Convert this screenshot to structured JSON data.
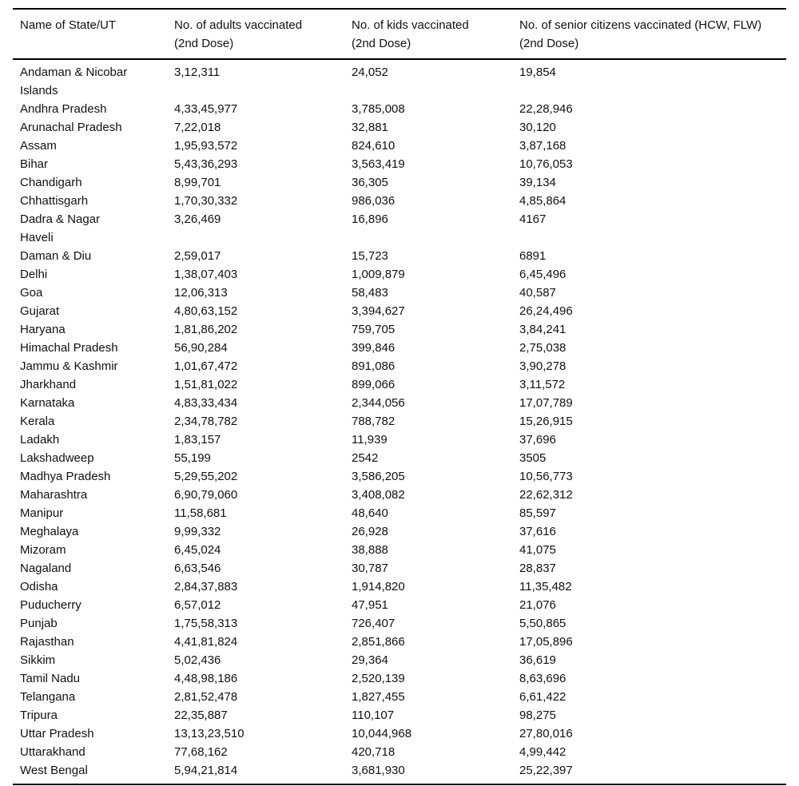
{
  "page": {
    "background": "#ffffff",
    "text_color": "#111111",
    "rule_color": "#000000"
  },
  "table": {
    "columns": [
      "Name of State/UT",
      "No. of adults vaccinated\n(2nd Dose)",
      "No. of kids vaccinated\n(2nd Dose)",
      "No. of senior citizens vaccinated (HCW, FLW)\n(2nd Dose)"
    ],
    "rows": [
      [
        "Andaman & Nicobar Islands",
        "3,12,311",
        "24,052",
        "19,854"
      ],
      [
        "Andhra Pradesh",
        "4,33,45,977",
        "3,785,008",
        "22,28,946"
      ],
      [
        "Arunachal Pradesh",
        "7,22,018",
        "32,881",
        "30,120"
      ],
      [
        "Assam",
        "1,95,93,572",
        "824,610",
        "3,87,168"
      ],
      [
        "Bihar",
        "5,43,36,293",
        "3,563,419",
        "10,76,053"
      ],
      [
        "Chandigarh",
        "8,99,701",
        "36,305",
        "39,134"
      ],
      [
        "Chhattisgarh",
        "1,70,30,332",
        "986,036",
        "4,85,864"
      ],
      [
        "Dadra & Nagar Haveli",
        "3,26,469",
        "16,896",
        "4167"
      ],
      [
        "Daman & Diu",
        "2,59,017",
        "15,723",
        "6891"
      ],
      [
        "Delhi",
        "1,38,07,403",
        "1,009,879",
        "6,45,496"
      ],
      [
        "Goa",
        "12,06,313",
        "58,483",
        "40,587"
      ],
      [
        "Gujarat",
        "4,80,63,152",
        "3,394,627",
        "26,24,496"
      ],
      [
        "Haryana",
        "1,81,86,202",
        "759,705",
        "3,84,241"
      ],
      [
        "Himachal Pradesh",
        "56,90,284",
        "399,846",
        "2,75,038"
      ],
      [
        "Jammu & Kashmir",
        "1,01,67,472",
        "891,086",
        "3,90,278"
      ],
      [
        "Jharkhand",
        "1,51,81,022",
        "899,066",
        "3,11,572"
      ],
      [
        "Karnataka",
        "4,83,33,434",
        "2,344,056",
        "17,07,789"
      ],
      [
        "Kerala",
        "2,34,78,782",
        "788,782",
        "15,26,915"
      ],
      [
        "Ladakh",
        "1,83,157",
        "11,939",
        "37,696"
      ],
      [
        "Lakshadweep",
        "55,199",
        "2542",
        "3505"
      ],
      [
        "Madhya Pradesh",
        "5,29,55,202",
        "3,586,205",
        "10,56,773"
      ],
      [
        "Maharashtra",
        "6,90,79,060",
        "3,408,082",
        "22,62,312"
      ],
      [
        "Manipur",
        "11,58,681",
        "48,640",
        "85,597"
      ],
      [
        "Meghalaya",
        "9,99,332",
        "26,928",
        "37,616"
      ],
      [
        "Mizoram",
        "6,45,024",
        "38,888",
        "41,075"
      ],
      [
        "Nagaland",
        "6,63,546",
        "30,787",
        "28,837"
      ],
      [
        "Odisha",
        "2,84,37,883",
        "1,914,820",
        "11,35,482"
      ],
      [
        "Puducherry",
        "6,57,012",
        "47,951",
        "21,076"
      ],
      [
        "Punjab",
        "1,75,58,313",
        "726,407",
        "5,50,865"
      ],
      [
        "Rajasthan",
        "4,41,81,824",
        "2,851,866",
        "17,05,896"
      ],
      [
        "Sikkim",
        "5,02,436",
        "29,364",
        "36,619"
      ],
      [
        "Tamil Nadu",
        "4,48,98,186",
        "2,520,139",
        "8,63,696"
      ],
      [
        "Telangana",
        "2,81,52,478",
        "1,827,455",
        "6,61,422"
      ],
      [
        "Tripura",
        "22,35,887",
        "110,107",
        "98,275"
      ],
      [
        "Uttar Pradesh",
        "13,13,23,510",
        "10,044,968",
        "27,80,016"
      ],
      [
        "Uttarakhand",
        "77,68,162",
        "420,718",
        "4,99,442"
      ],
      [
        "West Bengal",
        "5,94,21,814",
        "3,681,930",
        "25,22,397"
      ]
    ]
  }
}
